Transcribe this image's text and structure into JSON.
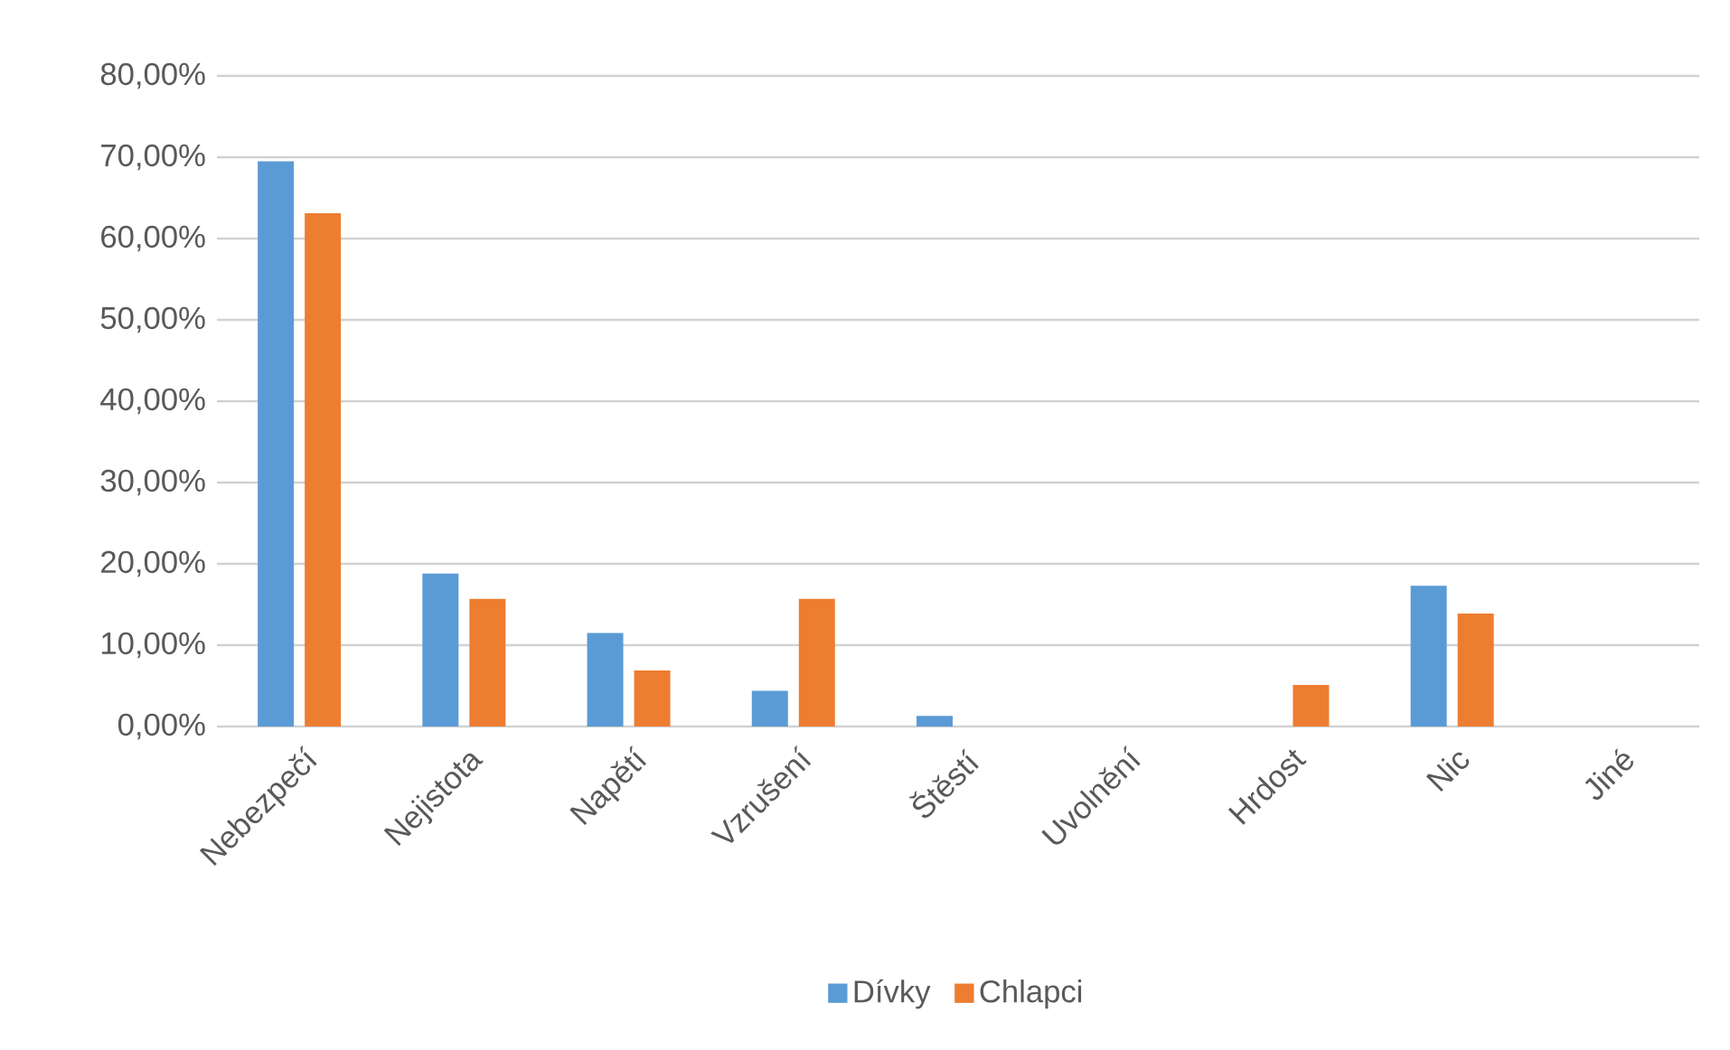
{
  "chart_data": {
    "type": "bar",
    "categories": [
      "Nebezpečí",
      "Nejistota",
      "Napětí",
      "Vzrušení",
      "Štěstí",
      "Uvolnění",
      "Hrdost",
      "Nic",
      "Jiné"
    ],
    "series": [
      {
        "name": "Dívky",
        "color": "#5b9bd5",
        "values": [
          69.5,
          18.8,
          11.5,
          4.4,
          1.3,
          0,
          0,
          17.3,
          0
        ]
      },
      {
        "name": "Chlapci",
        "color": "#ed7d31",
        "values": [
          63.1,
          15.7,
          6.9,
          15.7,
          0,
          0,
          5.1,
          13.9,
          0
        ]
      }
    ],
    "ylim": [
      0,
      80
    ],
    "yticks": [
      {
        "value": 0,
        "label": "0,00%"
      },
      {
        "value": 10,
        "label": "10,00%"
      },
      {
        "value": 20,
        "label": "20,00%"
      },
      {
        "value": 30,
        "label": "30,00%"
      },
      {
        "value": 40,
        "label": "40,00%"
      },
      {
        "value": 50,
        "label": "50,00%"
      },
      {
        "value": 60,
        "label": "60,00%"
      },
      {
        "value": 70,
        "label": "70,00%"
      },
      {
        "value": 80,
        "label": "80,00%"
      }
    ],
    "grid": "y",
    "legend": "bottom"
  }
}
